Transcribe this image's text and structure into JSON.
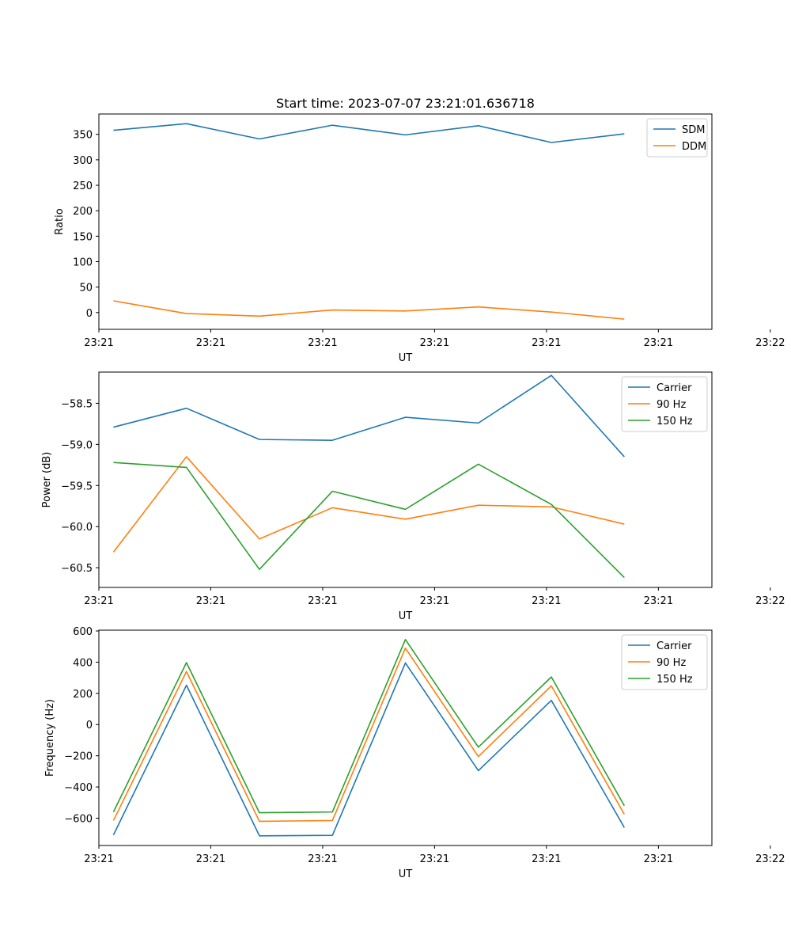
{
  "chart_data": [
    {
      "type": "line",
      "title": "Start time: 2023-07-07 23:21:01.636718",
      "xlabel": "UT",
      "ylabel": "Ratio",
      "x": [
        1,
        2,
        3,
        4,
        5,
        6,
        7,
        8
      ],
      "xlim": [
        0.8,
        9.2
      ],
      "xticks": [
        0.8,
        2.333,
        3.867,
        5.4,
        6.933,
        8.467,
        10.0
      ],
      "xtick_labels": [
        "23:21",
        "23:21",
        "23:21",
        "23:21",
        "23:21",
        "23:21",
        "23:22"
      ],
      "ylim": [
        -33,
        390
      ],
      "yticks": [
        0,
        50,
        100,
        150,
        200,
        250,
        300,
        350
      ],
      "ytick_labels": [
        "0",
        "50",
        "100",
        "150",
        "200",
        "250",
        "300",
        "350"
      ],
      "legend_position": "top-right",
      "series": [
        {
          "name": "SDM",
          "color": "#1f77b4",
          "values": [
            358,
            371,
            341,
            368,
            349,
            367,
            334,
            351
          ]
        },
        {
          "name": "DDM",
          "color": "#ff7f0e",
          "values": [
            23,
            -2,
            -7,
            5,
            3,
            11,
            1,
            -13
          ]
        }
      ]
    },
    {
      "type": "line",
      "title": "",
      "xlabel": "UT",
      "ylabel": "Power (dB)",
      "x": [
        1,
        2,
        3,
        4,
        5,
        6,
        7,
        8
      ],
      "xlim": [
        0.8,
        9.2
      ],
      "xticks": [
        0.8,
        2.333,
        3.867,
        5.4,
        6.933,
        8.467,
        10.0
      ],
      "xtick_labels": [
        "23:21",
        "23:21",
        "23:21",
        "23:21",
        "23:21",
        "23:21",
        "23:22"
      ],
      "ylim": [
        -60.74,
        -58.12
      ],
      "yticks": [
        -60.5,
        -60.0,
        -59.5,
        -59.0,
        -58.5
      ],
      "ytick_labels": [
        "−60.5",
        "−60.0",
        "−59.5",
        "−59.0",
        "−58.5"
      ],
      "legend_position": "top-right",
      "series": [
        {
          "name": "Carrier",
          "color": "#1f77b4",
          "values": [
            -58.79,
            -58.56,
            -58.94,
            -58.95,
            -58.67,
            -58.74,
            -58.16,
            -59.15
          ]
        },
        {
          "name": "90 Hz",
          "color": "#ff7f0e",
          "values": [
            -60.31,
            -59.15,
            -60.15,
            -59.77,
            -59.91,
            -59.74,
            -59.76,
            -59.97
          ]
        },
        {
          "name": "150 Hz",
          "color": "#2ca02c",
          "values": [
            -59.22,
            -59.28,
            -60.52,
            -59.57,
            -59.79,
            -59.24,
            -59.73,
            -60.62
          ]
        }
      ]
    },
    {
      "type": "line",
      "title": "",
      "xlabel": "UT",
      "ylabel": "Frequency (Hz)",
      "x": [
        1,
        2,
        3,
        4,
        5,
        6,
        7,
        8
      ],
      "xlim": [
        0.8,
        9.2
      ],
      "xticks": [
        0.8,
        2.333,
        3.867,
        5.4,
        6.933,
        8.467,
        10.0
      ],
      "xtick_labels": [
        "23:21",
        "23:21",
        "23:21",
        "23:21",
        "23:21",
        "23:21",
        "23:22"
      ],
      "ylim": [
        -775,
        605
      ],
      "yticks": [
        -600,
        -400,
        -200,
        0,
        200,
        400,
        600
      ],
      "ytick_labels": [
        "−600",
        "−400",
        "−200",
        "0",
        "200",
        "400",
        "600"
      ],
      "legend_position": "top-right",
      "series": [
        {
          "name": "Carrier",
          "color": "#1f77b4",
          "values": [
            -707,
            252,
            -713,
            -710,
            395,
            -295,
            155,
            -660
          ]
        },
        {
          "name": "90 Hz",
          "color": "#ff7f0e",
          "values": [
            -615,
            340,
            -620,
            -615,
            490,
            -205,
            248,
            -575
          ]
        },
        {
          "name": "150 Hz",
          "color": "#2ca02c",
          "values": [
            -560,
            397,
            -565,
            -560,
            545,
            -145,
            305,
            -520
          ]
        }
      ]
    }
  ]
}
